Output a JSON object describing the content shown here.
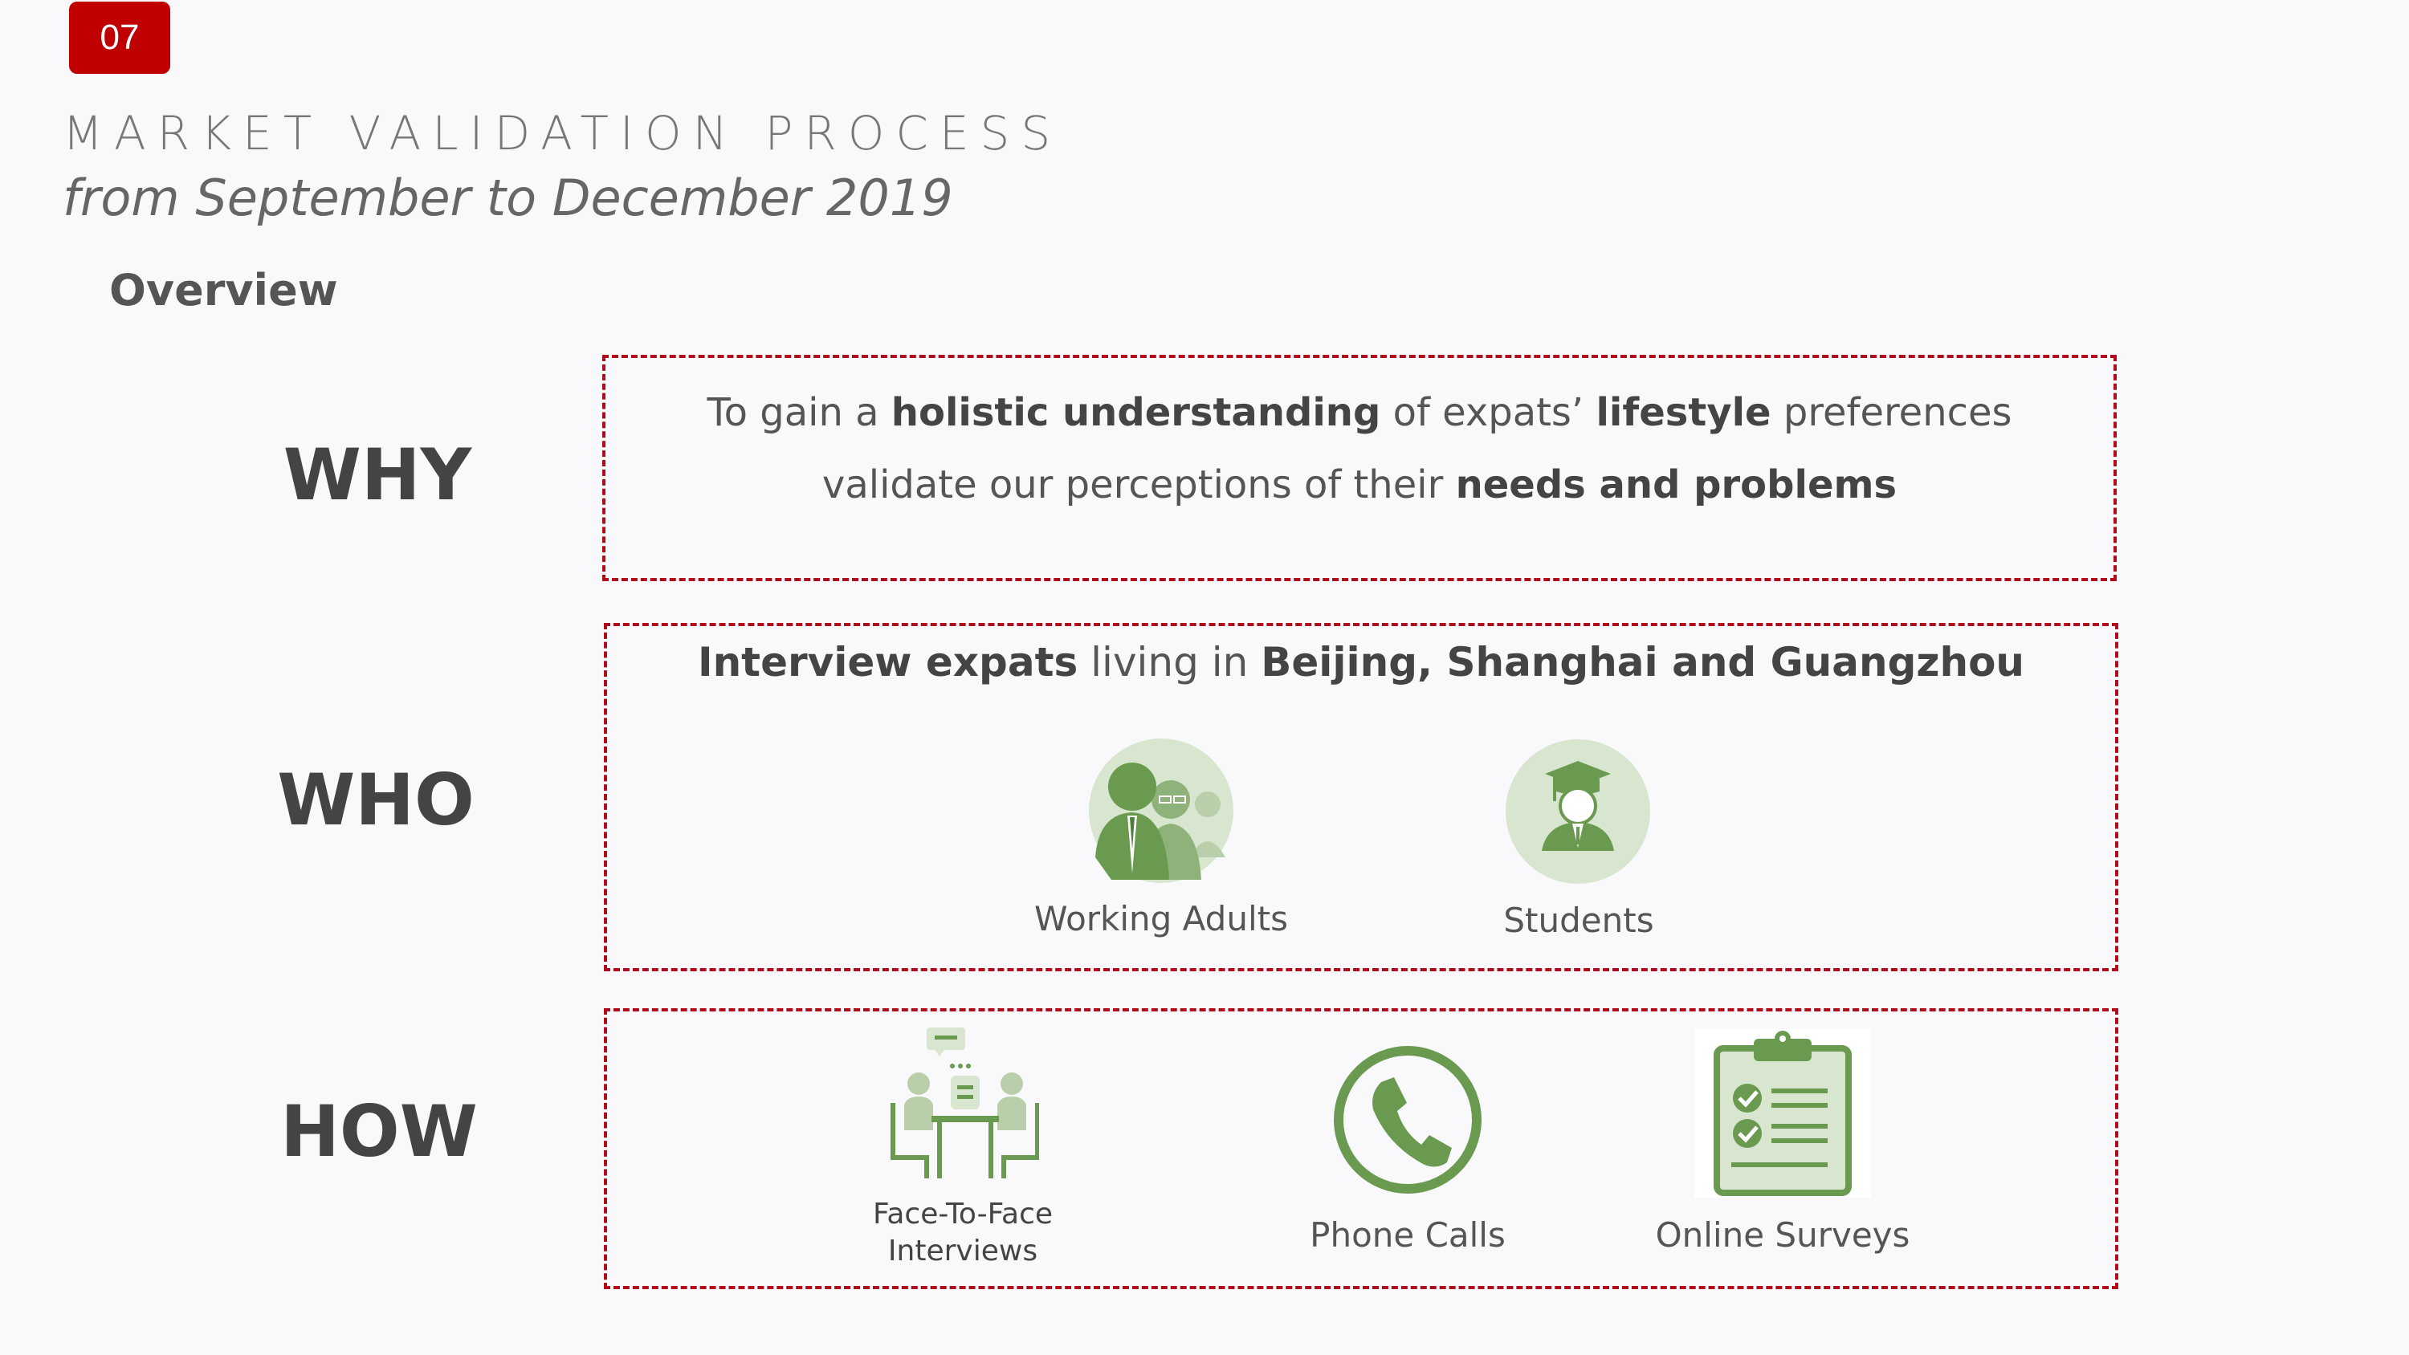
{
  "page_number": "07",
  "title": "MARKET  VALIDATION PROCESS",
  "subtitle": "from September to December 2019",
  "section_heading": "Overview",
  "rows": {
    "why": {
      "label": "WHY",
      "line1": {
        "p1": "To gain a ",
        "b1": "holistic understanding",
        "p2": " of expats’ ",
        "b2": "lifestyle",
        "p3": " preferences"
      },
      "line2": {
        "p1": "validate our perceptions of their ",
        "b1": "needs and problems"
      }
    },
    "who": {
      "label": "WHO",
      "heading": {
        "b1": "Interview expats",
        "p1": " living in ",
        "b2": "Beijing, Shanghai and Guangzhou"
      },
      "groups": [
        {
          "label": "Working Adults",
          "icon": "working-adults-icon"
        },
        {
          "label": "Students",
          "icon": "graduate-student-icon"
        }
      ]
    },
    "how": {
      "label": "HOW",
      "methods": [
        {
          "line1": "Face-To-Face",
          "line2": "Interviews",
          "icon": "face-to-face-meeting-icon"
        },
        {
          "label": "Phone Calls",
          "icon": "phone-icon"
        },
        {
          "label": "Online Surveys",
          "icon": "clipboard-checklist-icon"
        }
      ]
    }
  },
  "colors": {
    "badge": "#c00000",
    "border": "#b00c1c",
    "icon_green": "#6a9a50",
    "icon_light": "#d9e6cf"
  }
}
